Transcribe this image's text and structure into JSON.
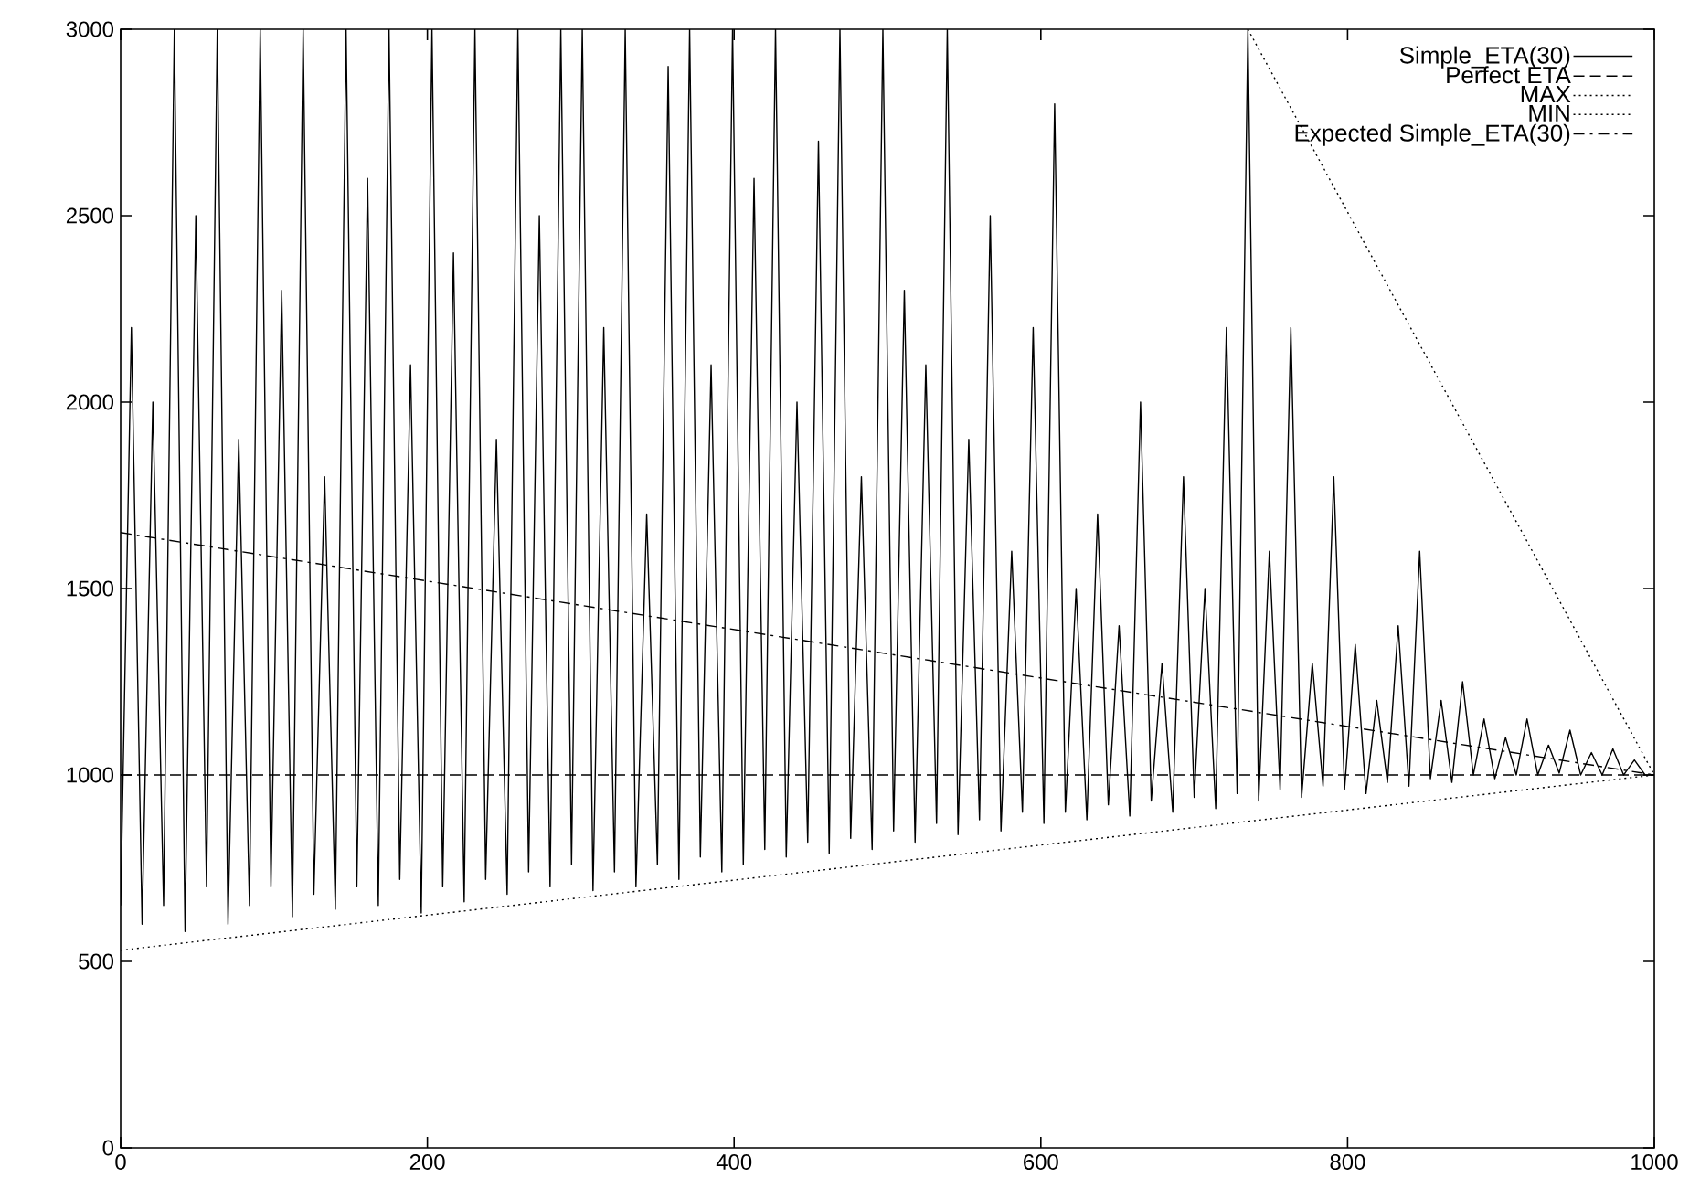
{
  "chart_data": {
    "type": "line",
    "xlim": [
      0,
      1000
    ],
    "ylim": [
      0,
      3000
    ],
    "xticks": [
      0,
      200,
      400,
      600,
      800,
      1000
    ],
    "yticks": [
      0,
      500,
      1000,
      1500,
      2000,
      2500,
      3000
    ],
    "grid": false,
    "legend": "top right",
    "marker": "none",
    "series": [
      {
        "name": "Simple_ETA(30)",
        "color": "#000000",
        "line_style": "solid",
        "x": [
          0,
          7,
          14,
          21,
          28,
          35,
          42,
          49,
          56,
          63,
          70,
          77,
          84,
          91,
          98,
          105,
          112,
          119,
          126,
          133,
          140,
          147,
          154,
          161,
          168,
          175,
          182,
          189,
          196,
          203,
          210,
          217,
          224,
          231,
          238,
          245,
          252,
          259,
          266,
          273,
          280,
          287,
          294,
          301,
          308,
          315,
          322,
          329,
          336,
          343,
          350,
          357,
          364,
          371,
          378,
          385,
          392,
          399,
          406,
          413,
          420,
          427,
          434,
          441,
          448,
          455,
          462,
          469,
          476,
          483,
          490,
          497,
          504,
          511,
          518,
          525,
          532,
          539,
          546,
          553,
          560,
          567,
          574,
          581,
          588,
          595,
          602,
          609,
          616,
          623,
          630,
          637,
          644,
          651,
          658,
          665,
          672,
          679,
          686,
          693,
          700,
          707,
          714,
          721,
          728,
          735,
          742,
          749,
          756,
          763,
          770,
          777,
          784,
          791,
          798,
          805,
          812,
          819,
          826,
          833,
          840,
          847,
          854,
          861,
          868,
          875,
          882,
          889,
          896,
          903,
          910,
          917,
          924,
          931,
          938,
          945,
          952,
          959,
          966,
          973,
          980,
          987,
          994,
          1000
        ],
        "values": [
          650,
          2200,
          600,
          2000,
          650,
          3000,
          580,
          2500,
          700,
          3000,
          600,
          1900,
          650,
          3000,
          700,
          2300,
          620,
          3000,
          680,
          1800,
          640,
          3000,
          700,
          2600,
          650,
          3000,
          720,
          2100,
          630,
          3000,
          700,
          2400,
          660,
          3000,
          720,
          1900,
          680,
          3000,
          740,
          2500,
          700,
          3000,
          760,
          3000,
          690,
          2200,
          740,
          3000,
          700,
          1700,
          760,
          2900,
          720,
          3000,
          780,
          2100,
          740,
          3000,
          760,
          2600,
          800,
          3000,
          780,
          2000,
          820,
          2700,
          790,
          3000,
          830,
          1800,
          800,
          3000,
          850,
          2300,
          820,
          2100,
          870,
          3000,
          840,
          1900,
          880,
          2500,
          850,
          1600,
          900,
          2200,
          870,
          2800,
          900,
          1500,
          880,
          1700,
          920,
          1400,
          890,
          2000,
          930,
          1300,
          900,
          1800,
          940,
          1500,
          910,
          2200,
          950,
          3000,
          930,
          1600,
          960,
          2200,
          940,
          1300,
          970,
          1800,
          960,
          1350,
          950,
          1200,
          980,
          1400,
          970,
          1600,
          990,
          1200,
          980,
          1250,
          1000,
          1150,
          990,
          1100,
          1000,
          1150,
          1000,
          1080,
          1005,
          1120,
          1000,
          1060,
          1000,
          1070,
          1000,
          1040,
          1000,
          1000
        ]
      },
      {
        "name": "Perfect ETA",
        "color": "#000000",
        "line_style": "dashed",
        "x": [
          0,
          1000
        ],
        "values": [
          1000,
          1000
        ]
      },
      {
        "name": "MAX",
        "color": "#000000",
        "line_style": "dotted",
        "x": [
          735,
          1000
        ],
        "values": [
          3000,
          1000
        ]
      },
      {
        "name": "MIN",
        "color": "#000000",
        "line_style": "dotted",
        "x": [
          0,
          1000
        ],
        "values": [
          530,
          1000
        ]
      },
      {
        "name": "Expected Simple_ETA(30)",
        "color": "#000000",
        "line_style": "dashdot",
        "x": [
          0,
          1000
        ],
        "values": [
          1650,
          1000
        ]
      }
    ]
  }
}
